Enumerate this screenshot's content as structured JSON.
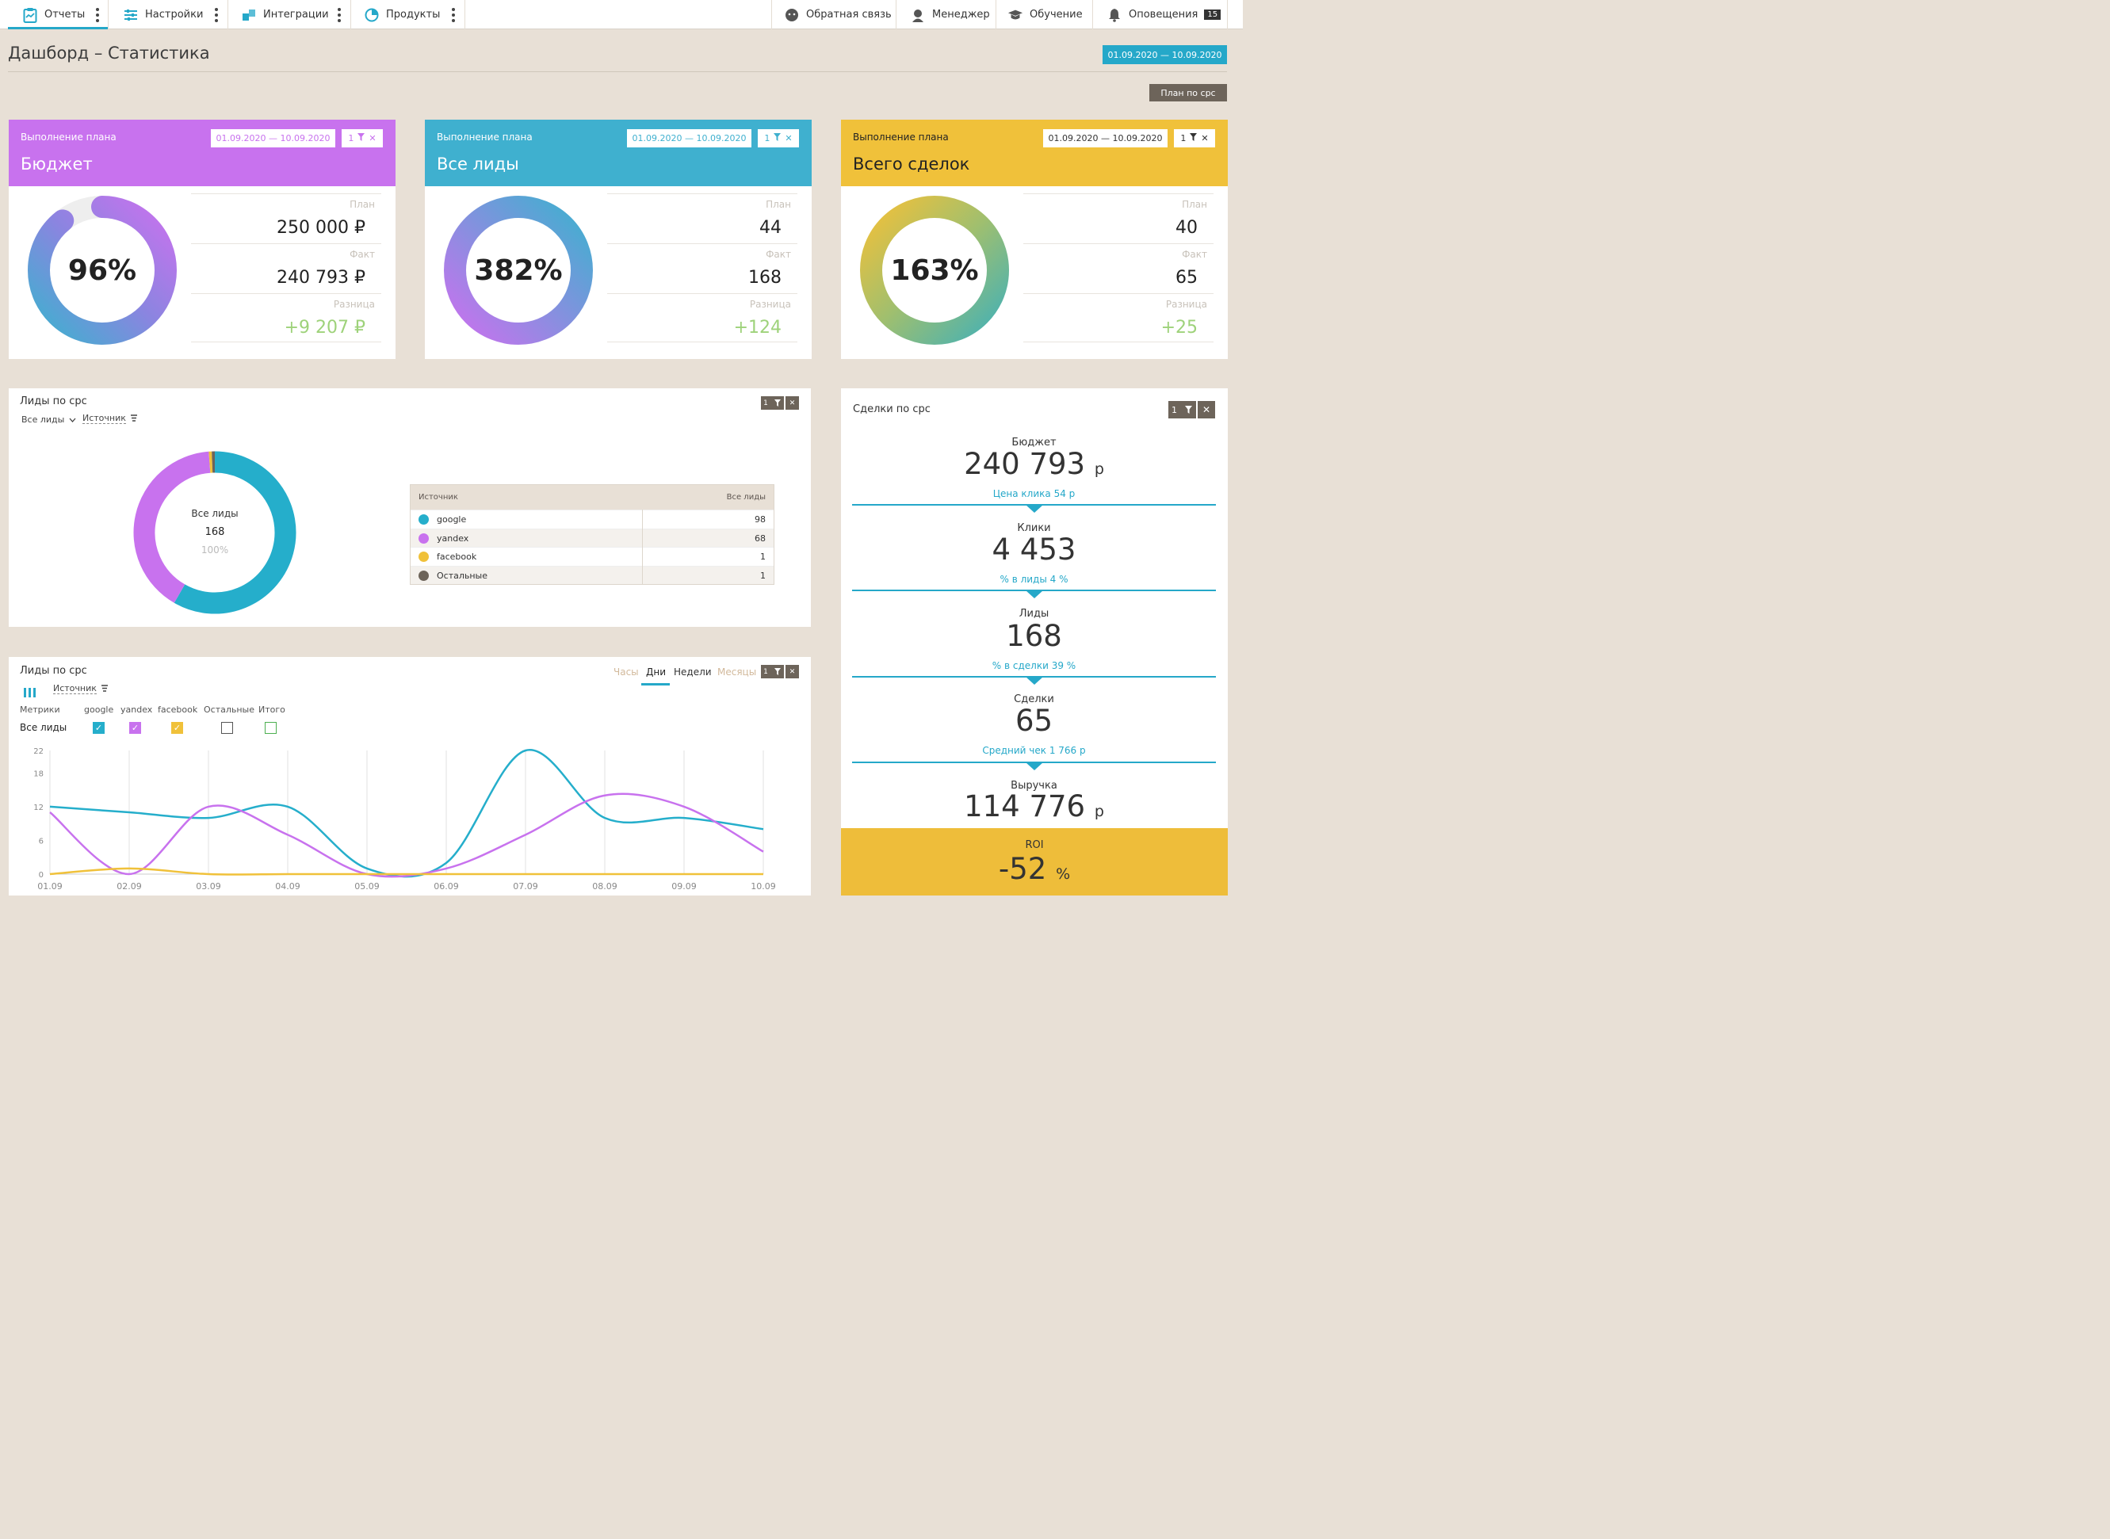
{
  "nav": {
    "items": [
      {
        "label": "Отчеты"
      },
      {
        "label": "Настройки"
      },
      {
        "label": "Интеграции"
      },
      {
        "label": "Продукты"
      }
    ],
    "right": [
      {
        "label": "Обратная связь"
      },
      {
        "label": "Менеджер"
      },
      {
        "label": "Обучение"
      },
      {
        "label": "Оповещения",
        "badge": "15"
      }
    ]
  },
  "page": {
    "title": "Дашборд – Статистика",
    "date_range": "01.09.2020  —  10.09.2020",
    "plan_button": "План по cpc"
  },
  "colors": {
    "accent": "#25a8c9",
    "purple": "#c872ee",
    "blue": "#3fb0cf",
    "yellow": "#f0c13a",
    "brown": "#6d645a",
    "green": "#9ed27a"
  },
  "kpis": [
    {
      "subtitle": "Выполнение плана",
      "title": "Бюджет",
      "date": "01.09.2020  —  10.09.2020",
      "filter": "1",
      "percent": "96%",
      "plan_label": "План",
      "plan": "250 000 ₽",
      "fact_label": "Факт",
      "fact": "240 793 ₽",
      "diff_label": "Разница",
      "diff": "+9 207 ₽",
      "ratio": 0.96
    },
    {
      "subtitle": "Выполнение плана",
      "title": "Все лиды",
      "date": "01.09.2020  —  10.09.2020",
      "filter": "1",
      "percent": "382%",
      "plan_label": "План",
      "plan": "44",
      "fact_label": "Факт",
      "fact": "168",
      "diff_label": "Разница",
      "diff": "+124",
      "ratio": 3.82
    },
    {
      "subtitle": "Выполнение плана",
      "title": "Всего сделок",
      "date": "01.09.2020  —  10.09.2020",
      "filter": "1",
      "percent": "163%",
      "plan_label": "План",
      "plan": "40",
      "fact_label": "Факт",
      "fact": "65",
      "diff_label": "Разница",
      "diff": "+25",
      "ratio": 1.63
    }
  ],
  "leads_panel": {
    "title": "Лиды по cpc",
    "selector": "Все лиды",
    "group_by": "Источник",
    "filter": "1",
    "center_label": "Все лиды",
    "center_value": "168",
    "center_pct": "100%",
    "table_head_source": "Источник",
    "table_head_value": "Все лиды",
    "rows": [
      {
        "name": "google",
        "value": "98",
        "color": "#25aecb"
      },
      {
        "name": "yandex",
        "value": "68",
        "color": "#c872ee"
      },
      {
        "name": "facebook",
        "value": "1",
        "color": "#f0c13a"
      },
      {
        "name": "Остальные",
        "value": "1",
        "color": "#6d645a"
      }
    ]
  },
  "deals_panel": {
    "title": "Сделки по cpc",
    "filter": "1",
    "steps": [
      {
        "label": "Бюджет",
        "value": "240 793",
        "unit": "р",
        "sub": "Цена клика 54 р"
      },
      {
        "label": "Клики",
        "value": "4 453",
        "unit": "",
        "sub": "% в лиды 4 %"
      },
      {
        "label": "Лиды",
        "value": "168",
        "unit": "",
        "sub": "% в сделки 39 %"
      },
      {
        "label": "Сделки",
        "value": "65",
        "unit": "",
        "sub": "Средний чек 1 766 р"
      },
      {
        "label": "Выручка",
        "value": "114 776",
        "unit": "р",
        "sub": ""
      }
    ],
    "roi_label": "ROI",
    "roi_value": "-52",
    "roi_unit": "%"
  },
  "line_panel": {
    "title": "Лиды по cpc",
    "group_by": "Источник",
    "tabs": [
      "Часы",
      "Дни",
      "Недели",
      "Месяцы"
    ],
    "active_tab": "Дни",
    "filter": "1",
    "metrics_label": "Метрики",
    "row_label": "Все лиды",
    "legend": [
      {
        "name": "google",
        "checked": true,
        "color": "#25aecb"
      },
      {
        "name": "yandex",
        "checked": true,
        "color": "#c872ee"
      },
      {
        "name": "facebook",
        "checked": true,
        "color": "#f0c13a"
      },
      {
        "name": "Остальные",
        "checked": false,
        "color": "#555555"
      },
      {
        "name": "Итого",
        "checked": false,
        "color": "#4caf50"
      }
    ]
  },
  "chart_data": {
    "type": "line",
    "x": [
      "01.09",
      "02.09",
      "03.09",
      "04.09",
      "05.09",
      "06.09",
      "07.09",
      "08.09",
      "09.09",
      "10.09"
    ],
    "y_ticks": [
      0,
      6,
      12,
      18,
      22
    ],
    "ylim": [
      0,
      22
    ],
    "series": [
      {
        "name": "google",
        "values": [
          12,
          11,
          10,
          12,
          1,
          2,
          22,
          10,
          10,
          8
        ]
      },
      {
        "name": "yandex",
        "values": [
          11,
          0,
          12,
          7,
          0,
          1,
          7,
          14,
          12,
          4
        ]
      },
      {
        "name": "facebook",
        "values": [
          0,
          1,
          0,
          0,
          0,
          0,
          0,
          0,
          0,
          0
        ]
      }
    ]
  }
}
